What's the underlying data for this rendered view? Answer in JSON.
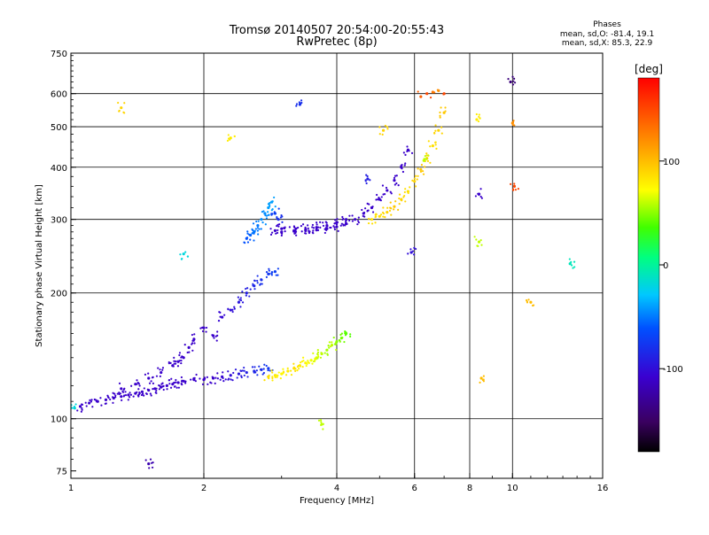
{
  "chart_data": {
    "type": "scatter",
    "title": "Tromsø 20140507 20:54:00-20:55:43",
    "subtitle": "RwPretec (8p)",
    "xlabel": "Frequency [MHz]",
    "ylabel": "Stationary phase Virtual Height [km]",
    "x_scale": "log",
    "y_scale": "log",
    "xlim": [
      1,
      16
    ],
    "ylim": [
      72,
      750
    ],
    "x_ticks": [
      1,
      2,
      4,
      6,
      8,
      10,
      16
    ],
    "x_tick_labels": [
      "1",
      "2",
      "4",
      "6",
      "8",
      "10",
      "16"
    ],
    "y_ticks": [
      75,
      100,
      200,
      300,
      400,
      500,
      600,
      750
    ],
    "y_tick_labels": [
      "75",
      "100",
      "200",
      "300",
      "400",
      "500",
      "600",
      "750"
    ],
    "grid_x": [
      2,
      4,
      6,
      8,
      10
    ],
    "grid_y": [
      100,
      200,
      300,
      400,
      500,
      600
    ],
    "colorbar": {
      "label": "[deg]",
      "range": [
        -180,
        180
      ],
      "ticks": [
        100,
        0,
        -100
      ],
      "tick_labels": [
        "100",
        "0",
        "-100"
      ]
    },
    "legend_title": "Phases",
    "legend_lines": [
      "mean, sd,O: -81.4, 19.1",
      "mean, sd,X: 85.3, 22.9"
    ],
    "series": [
      {
        "x": [
          1.05,
          1.1,
          1.15,
          1.2,
          1.25,
          1.3,
          1.35,
          1.4,
          1.45,
          1.5,
          1.55,
          1.6,
          1.65,
          1.7,
          1.75,
          1.8,
          1.9,
          2.0,
          2.1,
          2.2,
          2.3,
          2.4,
          2.5,
          2.6,
          2.7,
          2.8
        ],
        "y": [
          107,
          109,
          110,
          111,
          112,
          113,
          114,
          115,
          116,
          117,
          118,
          119,
          120,
          121,
          122,
          123,
          124,
          124,
          125,
          126,
          127,
          128,
          129,
          130,
          131,
          132
        ],
        "phase": [
          -110,
          -110,
          -110,
          -110,
          -110,
          -110,
          -110,
          -110,
          -110,
          -110,
          -110,
          -110,
          -110,
          -110,
          -110,
          -110,
          -110,
          -110,
          -110,
          -105,
          -100,
          -95,
          -90,
          -85,
          -80,
          -75
        ]
      },
      {
        "x": [
          1.3,
          1.4,
          1.5,
          1.6,
          1.7,
          1.75,
          1.8,
          1.85,
          1.9,
          2.0,
          2.1,
          2.2,
          2.3,
          2.4,
          2.5,
          2.6,
          2.7,
          2.8,
          2.9
        ],
        "y": [
          118,
          121,
          125,
          129,
          134,
          137,
          140,
          148,
          155,
          165,
          158,
          175,
          182,
          190,
          200,
          208,
          215,
          222,
          225
        ],
        "phase": [
          -110,
          -110,
          -110,
          -110,
          -110,
          -110,
          -110,
          -110,
          -110,
          -110,
          -110,
          -105,
          -100,
          -95,
          -90,
          -85,
          -80,
          -75,
          -70
        ]
      },
      {
        "x": [
          2.5,
          2.55,
          2.6,
          2.65,
          2.7,
          2.75,
          2.8,
          2.85,
          2.9,
          2.95,
          3.0,
          3.2,
          3.4,
          3.6,
          3.8,
          4.0,
          4.2
        ],
        "y": [
          270,
          275,
          280,
          290,
          300,
          310,
          320,
          330,
          310,
          300,
          285,
          282,
          284,
          287,
          290,
          295,
          300
        ],
        "phase": [
          -60,
          -55,
          -50,
          -50,
          -45,
          -45,
          -40,
          -40,
          -70,
          -80,
          -110,
          -110,
          -110,
          -110,
          -110,
          -110,
          -110
        ]
      },
      {
        "x": [
          2.9,
          3.0,
          3.2,
          3.4,
          3.6,
          3.8,
          4.0,
          4.2,
          4.4,
          4.6,
          4.8,
          5.0,
          5.2,
          5.4,
          5.6,
          5.8
        ],
        "y": [
          282,
          280,
          281,
          282,
          283,
          285,
          288,
          293,
          300,
          310,
          320,
          335,
          352,
          372,
          400,
          440
        ],
        "phase": [
          -110,
          -110,
          -110,
          -110,
          -110,
          -110,
          -110,
          -110,
          -110,
          -110,
          -110,
          -110,
          -110,
          -110,
          -110,
          -110
        ]
      },
      {
        "x": [
          2.8,
          2.9,
          3.0,
          3.1,
          3.2,
          3.3,
          3.4,
          3.5,
          3.6,
          3.7,
          3.8,
          3.9,
          4.0,
          4.1,
          4.2
        ],
        "y": [
          126,
          127,
          128,
          130,
          132,
          134,
          136,
          138,
          140,
          143,
          146,
          150,
          153,
          156,
          160
        ],
        "phase": [
          85,
          80,
          75,
          80,
          85,
          80,
          75,
          70,
          65,
          60,
          55,
          60,
          50,
          45,
          40
        ]
      },
      {
        "x": [
          4.8,
          5.0,
          5.2,
          5.4,
          5.6,
          5.8,
          6.0,
          6.2,
          6.4,
          6.6,
          6.8,
          7.0
        ],
        "y": [
          300,
          305,
          312,
          322,
          335,
          350,
          370,
          395,
          420,
          450,
          490,
          540
        ],
        "phase": [
          85,
          85,
          90,
          95,
          90,
          85,
          90,
          95,
          90,
          85,
          90,
          95
        ]
      },
      {
        "x": [
          6.2,
          6.4,
          6.6,
          6.8,
          7.0
        ],
        "y": [
          590,
          600,
          605,
          610,
          600
        ],
        "phase": [
          140,
          150,
          130,
          120,
          150
        ]
      },
      {
        "x": [
          1.02,
          1.3,
          1.5,
          1.8,
          3.3,
          3.7,
          5.1,
          5.9,
          8.3,
          8.4,
          8.5,
          9.9,
          10.1,
          11,
          13.5,
          10,
          8.4,
          4.7,
          6.3,
          2.3
        ],
        "y": [
          106,
          555,
          78,
          248,
          565,
          97,
          490,
          250,
          520,
          345,
          125,
          640,
          360,
          190,
          235,
          510,
          265,
          375,
          415,
          470
        ],
        "phase": [
          -20,
          90,
          -120,
          -20,
          -80,
          60,
          90,
          -100,
          80,
          -110,
          100,
          -140,
          150,
          100,
          -10,
          120,
          60,
          -90,
          60,
          80
        ]
      }
    ]
  }
}
